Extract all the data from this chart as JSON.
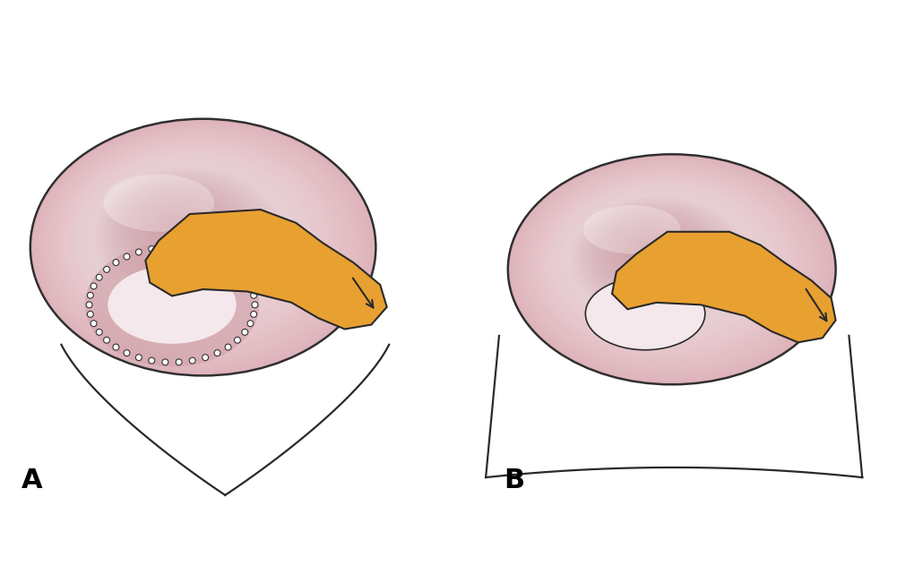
{
  "bg_color": "#ffffff",
  "label_A": "A",
  "label_B": "B",
  "label_fontsize": 22,
  "pink_outer": "#c8909a",
  "pink_mid": "#ddb0b8",
  "pink_light": "#ead0d5",
  "pink_highlight": "#f8eef0",
  "orange_fill": "#e8a030",
  "outline_color": "#2a2a2a",
  "dot_color": "#333333",
  "perf_fill": "#f5e8ec",
  "perf_ring": "#d0a0a8"
}
